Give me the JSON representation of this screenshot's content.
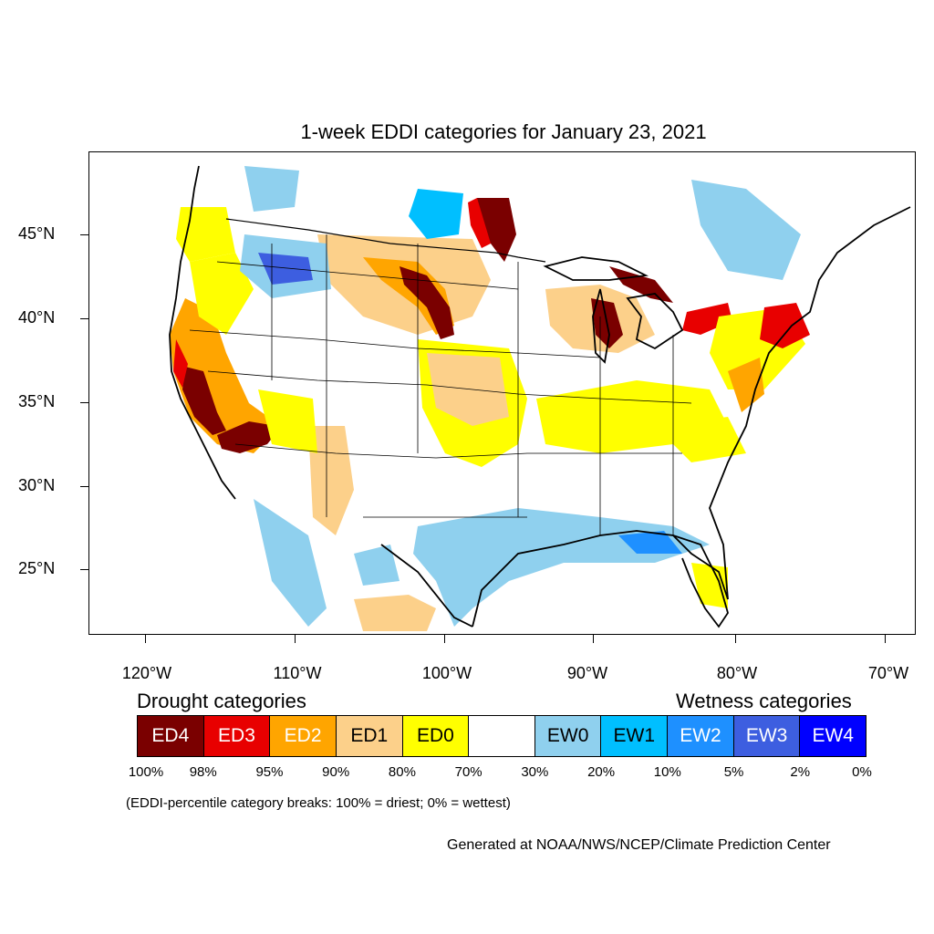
{
  "title": "1-week EDDI categories for January 23, 2021",
  "map": {
    "lat_labels": [
      "45°N",
      "40°N",
      "35°N",
      "30°N",
      "25°N"
    ],
    "lon_labels": [
      "120°W",
      "110°W",
      "100°W",
      "90°W",
      "80°W",
      "70°W"
    ],
    "colors": {
      "ED4": "#7a0000",
      "ED3": "#e80000",
      "ED2": "#ffa500",
      "ED1": "#fcd08a",
      "ED0": "#ffff00",
      "NONE": "#ffffff",
      "EW0": "#8fd0ee",
      "EW1": "#00bfff",
      "EW2": "#1e90ff",
      "EW3": "#3d5ee0",
      "EW4": "#0000ff"
    }
  },
  "legend": {
    "drought_heading": "Drought categories",
    "wetness_heading": "Wetness categories",
    "categories": [
      {
        "label": "ED4",
        "color": "#7a0000",
        "text_color": "#ffffff"
      },
      {
        "label": "ED3",
        "color": "#e80000",
        "text_color": "#ffffff"
      },
      {
        "label": "ED2",
        "color": "#ffa500",
        "text_color": "#ffffff"
      },
      {
        "label": "ED1",
        "color": "#fcd08a",
        "text_color": "#000000"
      },
      {
        "label": "ED0",
        "color": "#ffff00",
        "text_color": "#000000"
      },
      {
        "label": "",
        "color": "#ffffff",
        "text_color": "#000000"
      },
      {
        "label": "EW0",
        "color": "#8fd0ee",
        "text_color": "#000000"
      },
      {
        "label": "EW1",
        "color": "#00bfff",
        "text_color": "#000000"
      },
      {
        "label": "EW2",
        "color": "#1e90ff",
        "text_color": "#ffffff"
      },
      {
        "label": "EW3",
        "color": "#3d5ee0",
        "text_color": "#ffffff"
      },
      {
        "label": "EW4",
        "color": "#0000ff",
        "text_color": "#ffffff"
      }
    ],
    "breaks": [
      "100%",
      "98%",
      "95%",
      "90%",
      "80%",
      "70%",
      "30%",
      "20%",
      "10%",
      "5%",
      "2%",
      "0%"
    ]
  },
  "note": "(EDDI-percentile category breaks: 100% = driest; 0% = wettest)",
  "credit": "Generated at NOAA/NWS/NCEP/Climate Prediction Center"
}
